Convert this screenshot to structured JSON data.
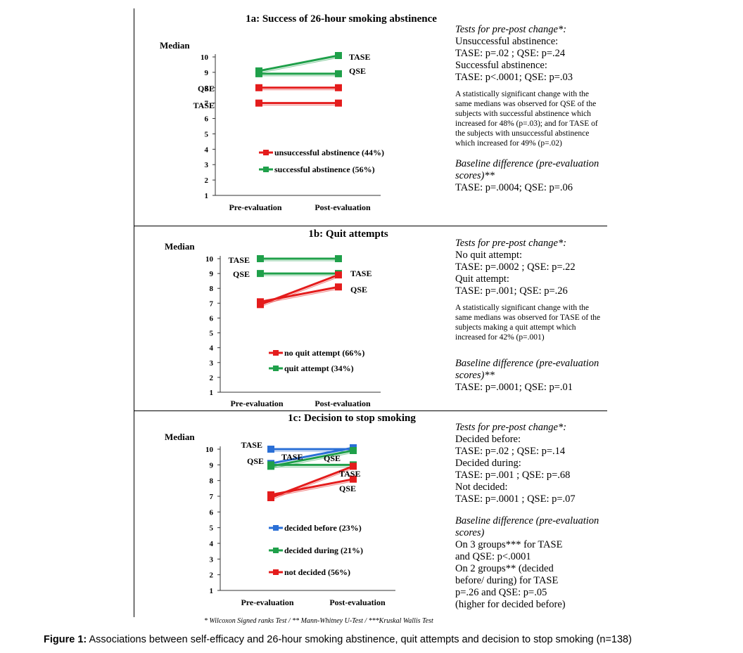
{
  "chart_data": [
    {
      "type": "line",
      "title": "1a: Success of 26-hour smoking abstinence",
      "ylabel": "Median",
      "ylim": [
        1,
        10
      ],
      "yticks": [
        "1",
        "2",
        "3",
        "4",
        "5",
        "6",
        "7",
        "8",
        "9",
        "10"
      ],
      "categories": [
        "Pre-evaluation",
        "Post-evaluation"
      ],
      "grid": false,
      "series": [
        {
          "name": "unsuccessful abstinence (44%)",
          "measure": "QSE",
          "color": "#e41c1c",
          "values": [
            8,
            8
          ]
        },
        {
          "name": "unsuccessful abstinence (44%)",
          "measure": "TASE",
          "color": "#e41c1c",
          "values": [
            7,
            7
          ]
        },
        {
          "name": "successful abstinence (56%)",
          "measure": "TASE",
          "color": "#1fa04a",
          "values": [
            9,
            10
          ]
        },
        {
          "name": "successful abstinence (56%)",
          "measure": "QSE",
          "color": "#1fa04a",
          "values": [
            9,
            9
          ]
        }
      ],
      "series_labels": [
        "QSE",
        "TASE",
        "TASE",
        "QSE"
      ],
      "legend": [
        "unsuccessful abstinence (44%)",
        "successful abstinence (56%)"
      ]
    },
    {
      "type": "line",
      "title": "1b: Quit attempts",
      "ylabel": "Median",
      "ylim": [
        1,
        10
      ],
      "yticks": [
        "1",
        "2",
        "3",
        "4",
        "5",
        "6",
        "7",
        "8",
        "9",
        "10"
      ],
      "categories": [
        "Pre-evaluation",
        "Post-evaluation"
      ],
      "grid": false,
      "series": [
        {
          "name": "quit attempt (34%)",
          "measure": "TASE",
          "color": "#1fa04a",
          "values": [
            10,
            10
          ]
        },
        {
          "name": "quit attempt (34%)",
          "measure": "QSE",
          "color": "#1fa04a",
          "values": [
            9,
            9
          ]
        },
        {
          "name": "no quit attempt (66%)",
          "measure": "TASE",
          "color": "#e41c1c",
          "values": [
            7,
            9
          ]
        },
        {
          "name": "no quit attempt (66%)",
          "measure": "QSE",
          "color": "#e41c1c",
          "values": [
            7,
            8
          ]
        }
      ],
      "series_labels": [
        "TASE",
        "QSE",
        "TASE",
        "QSE"
      ],
      "legend": [
        "no quit attempt (66%)",
        "quit attempt (34%)"
      ]
    },
    {
      "type": "line",
      "title": "1c: Decision to stop smoking",
      "ylabel": "Median",
      "ylim": [
        1,
        10
      ],
      "yticks": [
        "1",
        "2",
        "3",
        "4",
        "5",
        "6",
        "7",
        "8",
        "9",
        "10"
      ],
      "categories": [
        "Pre-evaluation",
        "Post-evaluation"
      ],
      "grid": false,
      "series": [
        {
          "name": "decided before (23%)",
          "measure": "TASE",
          "color": "#2a6fd6",
          "values": [
            10,
            10
          ]
        },
        {
          "name": "decided before (23%)",
          "measure": "QSE",
          "color": "#2a6fd6",
          "values": [
            9,
            10
          ]
        },
        {
          "name": "decided during (21%)",
          "measure": "TASE",
          "color": "#1fa04a",
          "values": [
            9,
            10
          ]
        },
        {
          "name": "decided during (21%)",
          "measure": "QSE",
          "color": "#1fa04a",
          "values": [
            9,
            9
          ]
        },
        {
          "name": "not decided (56%)",
          "measure": "TASE",
          "color": "#e41c1c",
          "values": [
            7,
            9
          ]
        },
        {
          "name": "not decided (56%)",
          "measure": "QSE",
          "color": "#e41c1c",
          "values": [
            7,
            8
          ]
        }
      ],
      "series_labels": [
        "TASE",
        "QSE",
        "TASE",
        "QSE",
        "TASE",
        "QSE"
      ],
      "legend": [
        "decided before (23%)",
        "decided during (21%)",
        "not decided (56%)"
      ]
    }
  ],
  "notes": {
    "a": {
      "heading": "Tests for pre-post change*:",
      "lines": [
        "Unsuccessful abstinence:",
        "TASE: p=.02 ; QSE: p=.24",
        "Successful abstinence:",
        "TASE: p<.0001; QSE: p=.03"
      ],
      "small": "A statistically significant change with the same medians was observed for QSE of the subjects with successful abstinence which increased for 48% (p=.03); and for TASE of the subjects with unsuccessful abstinence which increased for 49% (p=.02)",
      "baseline_heading": "Baseline difference (pre-evaluation scores)**",
      "baseline_lines": [
        "TASE: p=.0004; QSE: p=.06"
      ]
    },
    "b": {
      "heading": "Tests for pre-post change*:",
      "lines": [
        "No quit attempt:",
        "TASE: p=.0002 ; QSE: p=.22",
        "Quit attempt:",
        "TASE: p=.001; QSE: p=.26"
      ],
      "small": "A statistically significant change with the same medians was observed for TASE of the subjects making a quit attempt which increased for 42% (p=.001)",
      "baseline_heading": "Baseline difference (pre-evaluation scores)**",
      "baseline_lines": [
        "TASE: p=.0001; QSE: p=.01"
      ]
    },
    "c": {
      "heading": "Tests for pre-post change*:",
      "lines": [
        "Decided before:",
        "TASE: p=.02 ; QSE: p=.14",
        "Decided during:",
        "TASE: p=.001 ; QSE: p=.68",
        "Not decided:",
        "TASE: p=.0001 ; QSE: p=.07"
      ],
      "baseline_heading": "Baseline difference (pre-evaluation scores)",
      "baseline_lines": [
        "On 3 groups*** for TASE",
        "and QSE: p<.0001",
        "On 2 groups** (decided",
        "before/ during) for TASE",
        "p=.26 and QSE: p=.05",
        "(higher for decided before)"
      ]
    }
  },
  "footnote": "* Wilcoxon Signed ranks Test    /    ** Mann-Whitney U-Test  /   ***Kruskal Wallis Test",
  "caption": {
    "label": "Figure 1:",
    "text": " Associations between self-efficacy and 26-hour smoking abstinence, quit attempts and decision to stop smoking (n=138)"
  }
}
